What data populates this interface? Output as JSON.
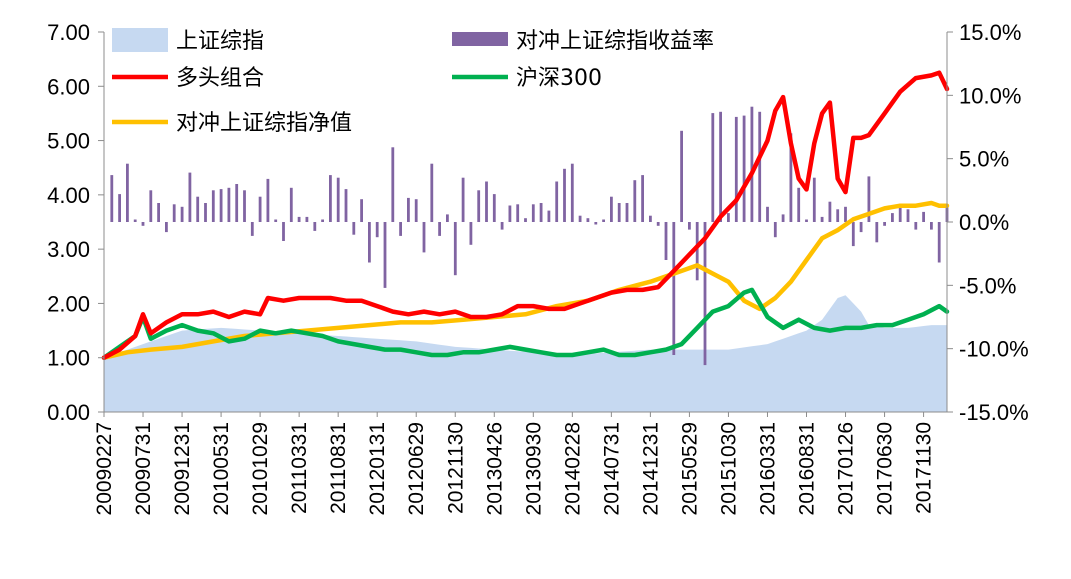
{
  "chart_data": {
    "type": "line",
    "colors": {
      "area": "#c6d9f1",
      "bar": "#8064a2",
      "long": "#ff0000",
      "hs300": "#00b050",
      "hedged": "#ffc000"
    },
    "legend": [
      {
        "key": "area",
        "label": "上证综指",
        "kind": "area"
      },
      {
        "key": "bar",
        "label": "对冲上证综指收益率",
        "kind": "bar"
      },
      {
        "key": "long",
        "label": "多头组合",
        "kind": "line"
      },
      {
        "key": "hs300",
        "label": "沪深300",
        "kind": "line"
      },
      {
        "key": "hedged",
        "label": "对冲上证综指净值",
        "kind": "line"
      }
    ],
    "y_left": {
      "min": 0,
      "max": 7,
      "ticks": [
        "0.00",
        "1.00",
        "2.00",
        "3.00",
        "4.00",
        "5.00",
        "6.00",
        "7.00"
      ]
    },
    "y_right": {
      "min": -15,
      "max": 15,
      "ticks": [
        "-15.0%",
        "-10.0%",
        "-5.0%",
        "0.0%",
        "5.0%",
        "10.0%",
        "15.0%"
      ]
    },
    "x_tick_labels": [
      "20090227",
      "20090731",
      "20091231",
      "20100531",
      "20101029",
      "20110331",
      "20110831",
      "20120131",
      "20120629",
      "20121130",
      "20130426",
      "20130930",
      "20140228",
      "20140731",
      "20141231",
      "20150529",
      "20151030",
      "20160331",
      "20160831",
      "20170126",
      "20170630",
      "20171130"
    ],
    "n_points": 109,
    "series": {
      "area": [
        [
          0,
          1.0
        ],
        [
          5,
          1.25
        ],
        [
          10,
          1.5
        ],
        [
          15,
          1.55
        ],
        [
          20,
          1.5
        ],
        [
          25,
          1.45
        ],
        [
          30,
          1.4
        ],
        [
          35,
          1.35
        ],
        [
          40,
          1.3
        ],
        [
          45,
          1.2
        ],
        [
          50,
          1.15
        ],
        [
          55,
          1.1
        ],
        [
          60,
          1.05
        ],
        [
          65,
          1.1
        ],
        [
          70,
          1.15
        ],
        [
          75,
          1.15
        ],
        [
          80,
          1.15
        ],
        [
          85,
          1.25
        ],
        [
          90,
          1.5
        ],
        [
          92,
          1.7
        ],
        [
          94,
          2.1
        ],
        [
          95,
          2.15
        ],
        [
          97,
          1.85
        ],
        [
          98,
          1.6
        ],
        [
          100,
          1.55
        ],
        [
          103,
          1.55
        ],
        [
          106,
          1.6
        ],
        [
          108,
          1.6
        ]
      ],
      "long": [
        [
          0,
          1.0
        ],
        [
          2,
          1.15
        ],
        [
          4,
          1.4
        ],
        [
          5,
          1.8
        ],
        [
          6,
          1.45
        ],
        [
          8,
          1.65
        ],
        [
          10,
          1.8
        ],
        [
          12,
          1.8
        ],
        [
          14,
          1.85
        ],
        [
          16,
          1.75
        ],
        [
          18,
          1.85
        ],
        [
          20,
          1.8
        ],
        [
          21,
          2.1
        ],
        [
          23,
          2.05
        ],
        [
          25,
          2.1
        ],
        [
          27,
          2.1
        ],
        [
          29,
          2.1
        ],
        [
          31,
          2.05
        ],
        [
          33,
          2.05
        ],
        [
          35,
          1.95
        ],
        [
          37,
          1.85
        ],
        [
          39,
          1.8
        ],
        [
          41,
          1.85
        ],
        [
          43,
          1.8
        ],
        [
          45,
          1.85
        ],
        [
          47,
          1.75
        ],
        [
          49,
          1.75
        ],
        [
          51,
          1.8
        ],
        [
          53,
          1.95
        ],
        [
          55,
          1.95
        ],
        [
          57,
          1.9
        ],
        [
          59,
          1.9
        ],
        [
          61,
          2.0
        ],
        [
          63,
          2.1
        ],
        [
          65,
          2.2
        ],
        [
          67,
          2.25
        ],
        [
          69,
          2.25
        ],
        [
          71,
          2.3
        ],
        [
          73,
          2.6
        ],
        [
          75,
          2.9
        ],
        [
          77,
          3.2
        ],
        [
          79,
          3.6
        ],
        [
          81,
          3.9
        ],
        [
          83,
          4.4
        ],
        [
          85,
          5.0
        ],
        [
          86,
          5.55
        ],
        [
          87,
          5.8
        ],
        [
          88,
          4.95
        ],
        [
          89,
          4.3
        ],
        [
          90,
          4.1
        ],
        [
          91,
          4.95
        ],
        [
          92,
          5.5
        ],
        [
          93,
          5.7
        ],
        [
          94,
          4.3
        ],
        [
          95,
          4.05
        ],
        [
          96,
          5.05
        ],
        [
          97,
          5.05
        ],
        [
          98,
          5.1
        ],
        [
          100,
          5.5
        ],
        [
          102,
          5.9
        ],
        [
          104,
          6.15
        ],
        [
          106,
          6.2
        ],
        [
          107,
          6.25
        ],
        [
          108,
          5.95
        ]
      ],
      "hs300": [
        [
          0,
          1.0
        ],
        [
          2,
          1.2
        ],
        [
          4,
          1.4
        ],
        [
          5,
          1.75
        ],
        [
          6,
          1.35
        ],
        [
          8,
          1.5
        ],
        [
          10,
          1.6
        ],
        [
          12,
          1.5
        ],
        [
          14,
          1.45
        ],
        [
          16,
          1.3
        ],
        [
          18,
          1.35
        ],
        [
          20,
          1.5
        ],
        [
          22,
          1.45
        ],
        [
          24,
          1.5
        ],
        [
          26,
          1.45
        ],
        [
          28,
          1.4
        ],
        [
          30,
          1.3
        ],
        [
          32,
          1.25
        ],
        [
          34,
          1.2
        ],
        [
          36,
          1.15
        ],
        [
          38,
          1.15
        ],
        [
          40,
          1.1
        ],
        [
          42,
          1.05
        ],
        [
          44,
          1.05
        ],
        [
          46,
          1.1
        ],
        [
          48,
          1.1
        ],
        [
          50,
          1.15
        ],
        [
          52,
          1.2
        ],
        [
          54,
          1.15
        ],
        [
          56,
          1.1
        ],
        [
          58,
          1.05
        ],
        [
          60,
          1.05
        ],
        [
          62,
          1.1
        ],
        [
          64,
          1.15
        ],
        [
          66,
          1.05
        ],
        [
          68,
          1.05
        ],
        [
          70,
          1.1
        ],
        [
          72,
          1.15
        ],
        [
          74,
          1.25
        ],
        [
          76,
          1.55
        ],
        [
          78,
          1.85
        ],
        [
          80,
          1.95
        ],
        [
          82,
          2.2
        ],
        [
          83,
          2.25
        ],
        [
          84,
          2.0
        ],
        [
          85,
          1.75
        ],
        [
          87,
          1.55
        ],
        [
          89,
          1.7
        ],
        [
          91,
          1.55
        ],
        [
          93,
          1.5
        ],
        [
          95,
          1.55
        ],
        [
          97,
          1.55
        ],
        [
          99,
          1.6
        ],
        [
          101,
          1.6
        ],
        [
          103,
          1.7
        ],
        [
          105,
          1.8
        ],
        [
          107,
          1.95
        ],
        [
          108,
          1.85
        ]
      ],
      "hedged": [
        [
          0,
          1.0
        ],
        [
          3,
          1.1
        ],
        [
          6,
          1.15
        ],
        [
          10,
          1.2
        ],
        [
          14,
          1.3
        ],
        [
          18,
          1.4
        ],
        [
          22,
          1.45
        ],
        [
          26,
          1.5
        ],
        [
          30,
          1.55
        ],
        [
          34,
          1.6
        ],
        [
          38,
          1.65
        ],
        [
          42,
          1.65
        ],
        [
          46,
          1.7
        ],
        [
          50,
          1.75
        ],
        [
          54,
          1.8
        ],
        [
          58,
          1.95
        ],
        [
          62,
          2.05
        ],
        [
          66,
          2.25
        ],
        [
          70,
          2.4
        ],
        [
          73,
          2.55
        ],
        [
          76,
          2.7
        ],
        [
          78,
          2.55
        ],
        [
          80,
          2.4
        ],
        [
          82,
          2.05
        ],
        [
          84,
          1.9
        ],
        [
          86,
          2.1
        ],
        [
          88,
          2.4
        ],
        [
          90,
          2.8
        ],
        [
          92,
          3.2
        ],
        [
          94,
          3.35
        ],
        [
          96,
          3.55
        ],
        [
          98,
          3.65
        ],
        [
          100,
          3.75
        ],
        [
          102,
          3.8
        ],
        [
          104,
          3.8
        ],
        [
          106,
          3.85
        ],
        [
          107,
          3.8
        ],
        [
          108,
          3.8
        ]
      ],
      "bar": [
        [
          1,
          3.7
        ],
        [
          2,
          2.2
        ],
        [
          3,
          4.6
        ],
        [
          4,
          0.2
        ],
        [
          5,
          -0.3
        ],
        [
          6,
          2.5
        ],
        [
          7,
          1.5
        ],
        [
          8,
          -0.8
        ],
        [
          9,
          1.4
        ],
        [
          10,
          1.2
        ],
        [
          11,
          3.9
        ],
        [
          12,
          2.0
        ],
        [
          13,
          1.5
        ],
        [
          14,
          2.5
        ],
        [
          15,
          2.6
        ],
        [
          16,
          2.7
        ],
        [
          17,
          3.0
        ],
        [
          18,
          2.5
        ],
        [
          19,
          -1.1
        ],
        [
          20,
          2.0
        ],
        [
          21,
          3.4
        ],
        [
          22,
          0.2
        ],
        [
          23,
          -1.5
        ],
        [
          24,
          2.7
        ],
        [
          25,
          0.4
        ],
        [
          26,
          0.4
        ],
        [
          27,
          -0.7
        ],
        [
          28,
          0.2
        ],
        [
          29,
          3.7
        ],
        [
          30,
          3.5
        ],
        [
          31,
          2.6
        ],
        [
          32,
          -1.0
        ],
        [
          33,
          1.8
        ],
        [
          34,
          -3.2
        ],
        [
          35,
          -1.2
        ],
        [
          36,
          -5.2
        ],
        [
          37,
          5.9
        ],
        [
          38,
          -1.1
        ],
        [
          39,
          1.9
        ],
        [
          40,
          1.8
        ],
        [
          41,
          -2.4
        ],
        [
          42,
          4.6
        ],
        [
          43,
          -1.1
        ],
        [
          44,
          0.6
        ],
        [
          45,
          -4.2
        ],
        [
          46,
          3.5
        ],
        [
          47,
          -1.8
        ],
        [
          48,
          2.5
        ],
        [
          49,
          3.2
        ],
        [
          50,
          2.2
        ],
        [
          51,
          -0.6
        ],
        [
          52,
          1.3
        ],
        [
          53,
          1.4
        ],
        [
          54,
          0.3
        ],
        [
          55,
          1.4
        ],
        [
          56,
          1.5
        ],
        [
          57,
          0.9
        ],
        [
          58,
          3.2
        ],
        [
          59,
          4.2
        ],
        [
          60,
          4.6
        ],
        [
          61,
          0.5
        ],
        [
          62,
          0.3
        ],
        [
          63,
          -0.2
        ],
        [
          64,
          0.2
        ],
        [
          65,
          2.0
        ],
        [
          66,
          1.5
        ],
        [
          67,
          1.5
        ],
        [
          68,
          3.3
        ],
        [
          69,
          3.7
        ],
        [
          70,
          0.5
        ],
        [
          71,
          -0.3
        ],
        [
          72,
          -3.0
        ],
        [
          73,
          -10.5
        ],
        [
          74,
          7.2
        ],
        [
          75,
          -0.6
        ],
        [
          76,
          -4.6
        ],
        [
          77,
          -11.3
        ],
        [
          78,
          8.6
        ],
        [
          79,
          8.7
        ],
        [
          80,
          0.7
        ],
        [
          81,
          8.3
        ],
        [
          82,
          8.4
        ],
        [
          83,
          9.1
        ],
        [
          84,
          8.7
        ],
        [
          85,
          1.2
        ],
        [
          86,
          -1.2
        ],
        [
          87,
          0.6
        ],
        [
          88,
          7.0
        ],
        [
          89,
          2.7
        ],
        [
          90,
          0.2
        ],
        [
          91,
          3.5
        ],
        [
          92,
          0.4
        ],
        [
          93,
          1.6
        ],
        [
          94,
          1.0
        ],
        [
          95,
          1.2
        ],
        [
          96,
          -1.9
        ],
        [
          97,
          -0.8
        ],
        [
          98,
          3.6
        ],
        [
          99,
          -1.6
        ],
        [
          100,
          -0.3
        ],
        [
          101,
          0.7
        ],
        [
          102,
          1.2
        ],
        [
          103,
          1.0
        ],
        [
          104,
          -0.6
        ],
        [
          105,
          0.8
        ],
        [
          106,
          -0.6
        ],
        [
          107,
          -3.2
        ],
        [
          108,
          1.4
        ]
      ]
    }
  }
}
